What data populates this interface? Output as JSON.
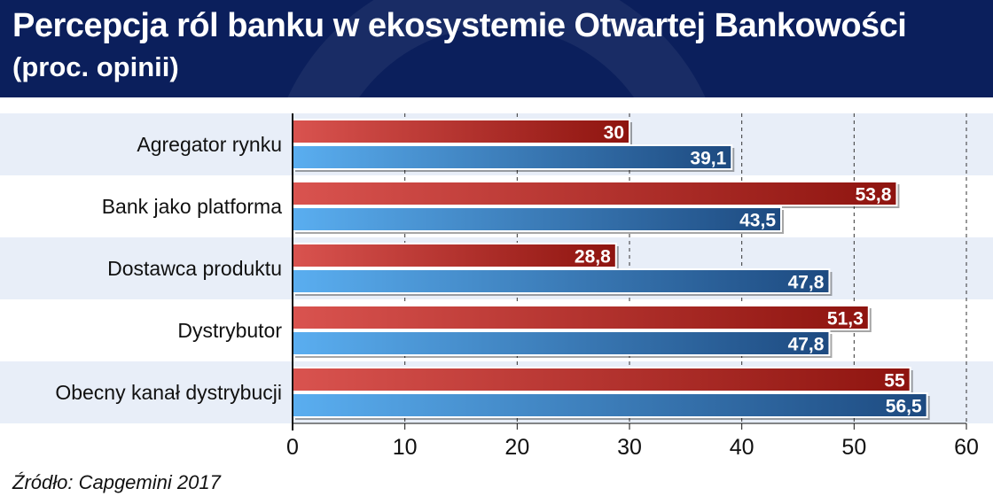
{
  "header": {
    "title": "Percepcja ról banku w ekosystemie Otwartej Bankowości",
    "subtitle": "(proc. opinii)"
  },
  "source": "Źródło: Capgemini 2017",
  "colors": {
    "header_bg": "#0b1f5c",
    "series_red": "#b0201c",
    "series_blue": "#2a6bb0",
    "band": "#e8eef8"
  },
  "chart_data": {
    "type": "bar",
    "orientation": "horizontal",
    "categories": [
      "Agregator rynku",
      "Bank jako platforma",
      "Dostawca produktu",
      "Dystrybutor",
      "Obecny kanał dystrybucji"
    ],
    "series": [
      {
        "values": [
          30,
          53.8,
          28.8,
          51.3,
          55
        ],
        "value_labels": [
          "30",
          "53,8",
          "28,8",
          "51,3",
          "55"
        ],
        "color": "#b0201c"
      },
      {
        "values": [
          39.1,
          43.5,
          47.8,
          47.8,
          56.5
        ],
        "value_labels": [
          "39,1",
          "43,5",
          "47,8",
          "47,8",
          "56,5"
        ],
        "color": "#2a6bb0"
      }
    ],
    "xlim": [
      0,
      60
    ],
    "ticks": [
      0,
      10,
      20,
      30,
      40,
      50,
      60
    ],
    "grid": "dashed-vertical",
    "title": "Percepcja ról banku w ekosystemie Otwartej Bankowości",
    "subtitle": "(proc. opinii)"
  }
}
